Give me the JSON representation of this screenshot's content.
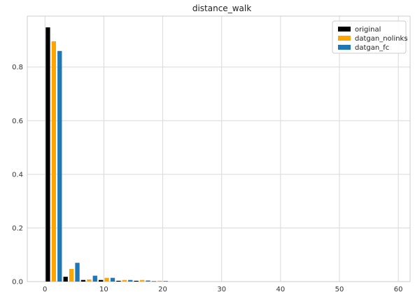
{
  "chart_data": {
    "type": "bar",
    "title": "distance_walk",
    "xlabel": "",
    "ylabel": "",
    "xlim": [
      -3,
      62
    ],
    "ylim": [
      0,
      0.99
    ],
    "xticks": [
      0,
      10,
      20,
      30,
      40,
      50,
      60
    ],
    "yticks": [
      0.0,
      0.2,
      0.4,
      0.6,
      0.8
    ],
    "ytick_labels": [
      "0.0",
      "0.2",
      "0.4",
      "0.6",
      "0.8"
    ],
    "grid": true,
    "legend_position": "top-right",
    "bin_centers": [
      1.5,
      4.5,
      7.5,
      10.5,
      13.5,
      16.5,
      19.5
    ],
    "series": [
      {
        "name": "original",
        "color": "#000000",
        "values": [
          0.948,
          0.018,
          0.006,
          0.006,
          0.003,
          0.003,
          0.001
        ]
      },
      {
        "name": "datgan_nolinks",
        "color": "#FFA500",
        "values": [
          0.896,
          0.047,
          0.008,
          0.014,
          0.006,
          0.006,
          0.003
        ]
      },
      {
        "name": "datgan_fc",
        "color": "#1F77B4",
        "values": [
          0.86,
          0.07,
          0.022,
          0.014,
          0.006,
          0.004,
          0.002
        ]
      }
    ]
  }
}
